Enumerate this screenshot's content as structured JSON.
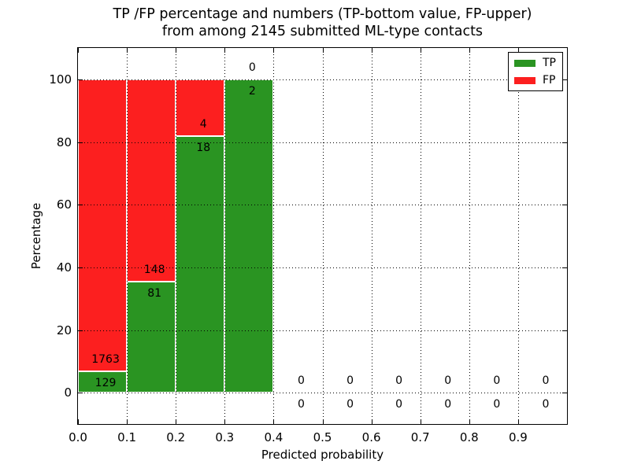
{
  "chart_data": {
    "type": "bar",
    "stacked": true,
    "title_line1": "TP /FP percentage and numbers (TP-bottom value, FP-upper)",
    "title_line2": "from among 2145 submitted ML-type contacts",
    "total_contacts": 2145,
    "xlabel": "Predicted probability",
    "ylabel": "Percentage",
    "xlim": [
      0.0,
      1.0
    ],
    "ylim": [
      -10,
      110
    ],
    "xticks": [
      "0.0",
      "0.1",
      "0.2",
      "0.3",
      "0.4",
      "0.5",
      "0.6",
      "0.7",
      "0.8",
      "0.9"
    ],
    "yticks": [
      0,
      20,
      40,
      60,
      80,
      100
    ],
    "grid": "dotted",
    "legend_position": "upper right",
    "legend": [
      {
        "label": "TP",
        "color": "#2a9422"
      },
      {
        "label": "FP",
        "color": "#fc1f1f"
      }
    ],
    "bars": [
      {
        "x0": 0.0,
        "x1": 0.1,
        "tp": 129,
        "fp": 1763
      },
      {
        "x0": 0.1,
        "x1": 0.2,
        "tp": 81,
        "fp": 148
      },
      {
        "x0": 0.2,
        "x1": 0.3,
        "tp": 18,
        "fp": 4
      },
      {
        "x0": 0.3,
        "x1": 0.4,
        "tp": 2,
        "fp": 0
      },
      {
        "x0": 0.4,
        "x1": 0.5,
        "tp": 0,
        "fp": 0
      },
      {
        "x0": 0.5,
        "x1": 0.6,
        "tp": 0,
        "fp": 0
      },
      {
        "x0": 0.6,
        "x1": 0.7,
        "tp": 0,
        "fp": 0
      },
      {
        "x0": 0.7,
        "x1": 0.8,
        "tp": 0,
        "fp": 0
      },
      {
        "x0": 0.8,
        "x1": 0.9,
        "tp": 0,
        "fp": 0
      },
      {
        "x0": 0.9,
        "x1": 1.0,
        "tp": 0,
        "fp": 0
      }
    ]
  }
}
